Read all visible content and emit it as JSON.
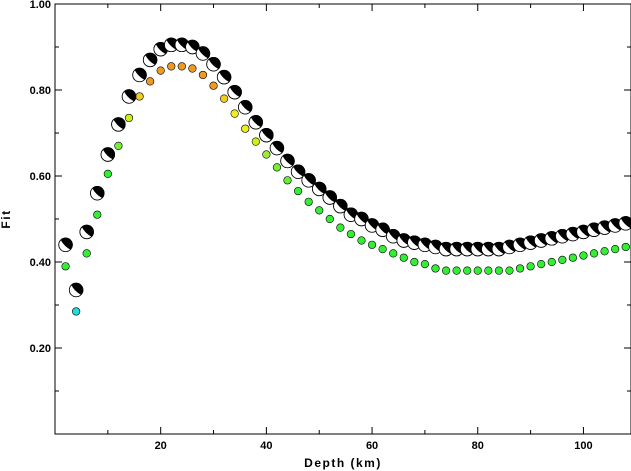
{
  "chart_data": {
    "type": "scatter",
    "xlabel": "Depth (km)",
    "ylabel": "Fit",
    "xlim": [
      0,
      109
    ],
    "ylim": [
      0.0,
      1.0
    ],
    "x_ticks": [
      20,
      40,
      60,
      80,
      100
    ],
    "x_tick_labels": [
      "20",
      "40",
      "60",
      "80",
      "100"
    ],
    "y_ticks": [
      0.2,
      0.4,
      0.6,
      0.8,
      1.0
    ],
    "y_tick_labels": [
      "0.20",
      "0.40",
      "0.60",
      "0.80",
      "1.00"
    ],
    "grid": false,
    "legend": "none",
    "colors": {
      "axis": "#000000",
      "mechanism_fill": "#000000",
      "mechanism_background": "#ffffff"
    },
    "series": [
      {
        "marker": "focal-mechanism",
        "x": [
          2,
          4,
          6,
          8,
          10,
          12,
          14,
          16,
          18,
          20,
          22,
          24,
          26,
          28,
          30,
          32,
          34,
          36,
          38,
          40,
          42,
          44,
          46,
          48,
          50,
          52,
          54,
          56,
          58,
          60,
          62,
          64,
          66,
          68,
          70,
          72,
          74,
          76,
          78,
          80,
          82,
          84,
          86,
          88,
          90,
          92,
          94,
          96,
          98,
          100,
          102,
          104,
          106,
          108
        ],
        "values": [
          0.44,
          0.335,
          0.47,
          0.56,
          0.65,
          0.72,
          0.785,
          0.835,
          0.87,
          0.895,
          0.905,
          0.905,
          0.9,
          0.885,
          0.86,
          0.83,
          0.795,
          0.76,
          0.725,
          0.695,
          0.665,
          0.635,
          0.61,
          0.59,
          0.57,
          0.55,
          0.53,
          0.51,
          0.5,
          0.485,
          0.475,
          0.46,
          0.45,
          0.445,
          0.44,
          0.435,
          0.43,
          0.43,
          0.43,
          0.43,
          0.43,
          0.43,
          0.435,
          0.44,
          0.445,
          0.45,
          0.455,
          0.46,
          0.465,
          0.47,
          0.475,
          0.48,
          0.485,
          0.49
        ]
      },
      {
        "marker": "colored-dot",
        "x": [
          2,
          4,
          6,
          8,
          10,
          12,
          14,
          16,
          18,
          20,
          22,
          24,
          26,
          28,
          30,
          32,
          34,
          36,
          38,
          40,
          42,
          44,
          46,
          48,
          50,
          52,
          54,
          56,
          58,
          60,
          62,
          64,
          66,
          68,
          70,
          72,
          74,
          76,
          78,
          80,
          82,
          84,
          86,
          88,
          90,
          92,
          94,
          96,
          98,
          100,
          102,
          104,
          106,
          108
        ],
        "values": [
          0.39,
          0.285,
          0.42,
          0.51,
          0.605,
          0.67,
          0.735,
          0.785,
          0.82,
          0.845,
          0.855,
          0.855,
          0.85,
          0.835,
          0.81,
          0.78,
          0.745,
          0.71,
          0.68,
          0.65,
          0.62,
          0.59,
          0.565,
          0.54,
          0.52,
          0.5,
          0.48,
          0.465,
          0.45,
          0.44,
          0.43,
          0.42,
          0.41,
          0.4,
          0.395,
          0.385,
          0.38,
          0.38,
          0.38,
          0.38,
          0.38,
          0.38,
          0.38,
          0.385,
          0.39,
          0.395,
          0.4,
          0.405,
          0.41,
          0.415,
          0.42,
          0.425,
          0.43,
          0.435
        ],
        "colors": [
          "#33ee33",
          "#22dddd",
          "#33ee33",
          "#33ee33",
          "#33ee33",
          "#77ee33",
          "#ccee22",
          "#eecc22",
          "#ee9922",
          "#ee9922",
          "#ee9922",
          "#ee9922",
          "#ee9922",
          "#ee9922",
          "#ee9922",
          "#eecc22",
          "#eeee22",
          "#eeee22",
          "#ccee22",
          "#99ee33",
          "#77ee33",
          "#66ee33",
          "#33ee33",
          "#33ee33",
          "#33ee33",
          "#33ee33",
          "#33ee33",
          "#33ee33",
          "#33ee33",
          "#33ee33",
          "#33ee33",
          "#33ee33",
          "#33ee33",
          "#33ee33",
          "#33ee33",
          "#33ee33",
          "#33ee33",
          "#33ee33",
          "#33ee33",
          "#33ee33",
          "#33ee33",
          "#33ee33",
          "#33ee33",
          "#33ee33",
          "#33ee33",
          "#33ee33",
          "#33ee33",
          "#33ee33",
          "#33ee33",
          "#33ee33",
          "#33ee33",
          "#33ee33",
          "#33ee33",
          "#33ee33"
        ]
      }
    ]
  }
}
